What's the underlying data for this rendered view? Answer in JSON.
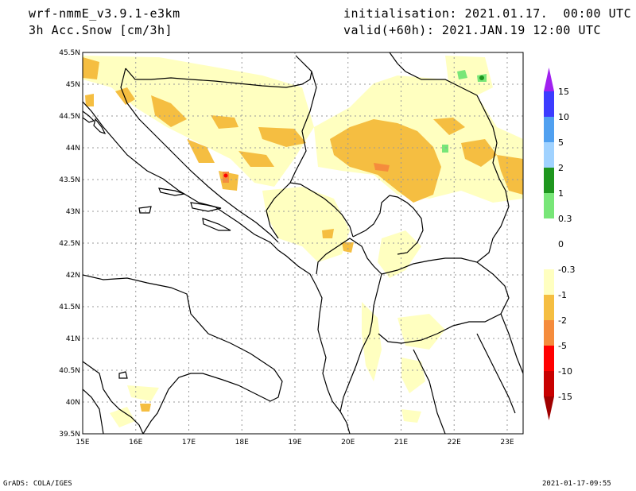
{
  "header": {
    "model": "wrf-nmmE_v3.9.1-e3km",
    "field": "3h Acc.Snow [cm/3h]",
    "init": "initialisation: 2021.01.17.  00:00 UTC",
    "valid": "valid(+60h): 2021.JAN.19 12:00 UTC"
  },
  "footer": {
    "credit": "GrADS: COLA/IGES",
    "timestamp": "2021-01-17-09:55"
  },
  "map": {
    "lon_ticks": [
      "15E",
      "16E",
      "17E",
      "18E",
      "19E",
      "20E",
      "21E",
      "22E",
      "23E"
    ],
    "lat_ticks": [
      "45.5N",
      "45N",
      "44.5N",
      "44N",
      "43.5N",
      "43N",
      "42.5N",
      "42N",
      "41.5N",
      "41N",
      "40.5N",
      "40N",
      "39.5N"
    ],
    "lon_range": [
      15,
      23.3
    ],
    "lat_range": [
      39.5,
      45.5
    ],
    "grid": true
  },
  "colorbar": {
    "labels": [
      "15",
      "10",
      "5",
      "2",
      "1",
      "0.3",
      "0",
      "-0.3",
      "-1",
      "-2",
      "-5",
      "-10",
      "-15"
    ],
    "colors": [
      "#a020f0",
      "#3c3cff",
      "#50a0f0",
      "#a0d2ff",
      "#1e961e",
      "#78e678",
      "#ffffff",
      "#ffffff",
      "#ffffc0",
      "#f5be41",
      "#f58c3c",
      "#ff0000",
      "#c80000",
      "#a00000"
    ],
    "bins": [
      {
        "color": "#a020f0"
      },
      {
        "color": "#3c3cff"
      },
      {
        "color": "#50a0f0"
      },
      {
        "color": "#a0d2ff"
      },
      {
        "color": "#1e961e"
      },
      {
        "color": "#78e678"
      },
      {
        "color": "#ffffff"
      },
      {
        "color": "#ffffff"
      },
      {
        "color": "#ffffc0"
      },
      {
        "color": "#f5be41"
      },
      {
        "color": "#f58c3c"
      },
      {
        "color": "#ff0000"
      },
      {
        "color": "#c80000"
      },
      {
        "color": "#a00000"
      }
    ]
  }
}
